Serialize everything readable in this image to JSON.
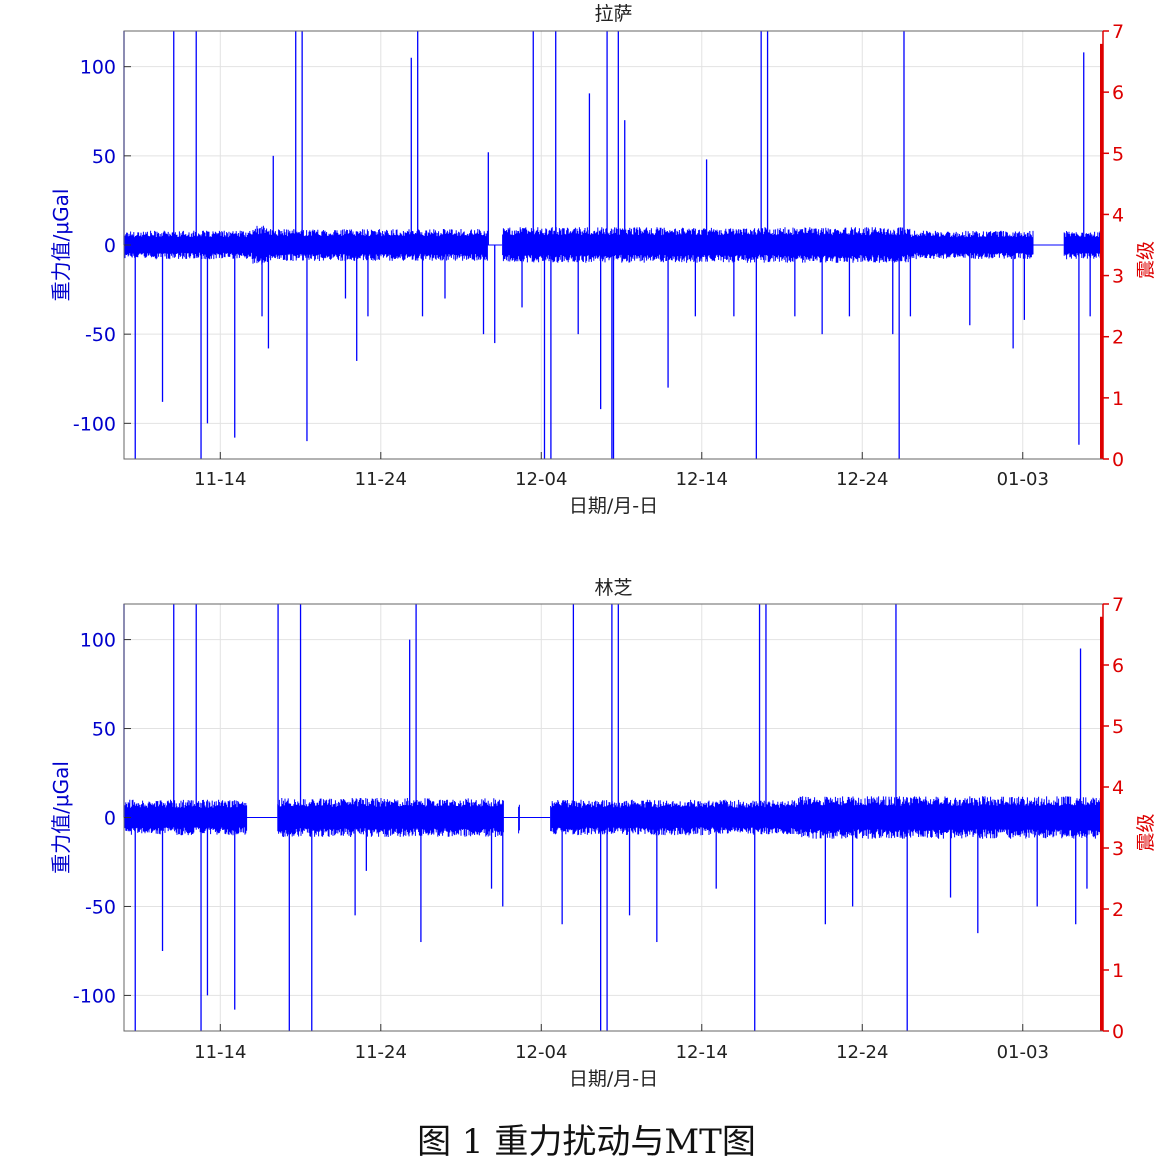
{
  "figure": {
    "caption": "图 1 重力扰动与MT图"
  },
  "chart_data": [
    {
      "type": "line",
      "title": "拉萨",
      "xlabel": "日期/月-日",
      "ylabel_left": "重力值/μGal",
      "ylabel_right": "震级",
      "x_range": [
        "11-08",
        "01-08"
      ],
      "x_ticks": [
        "11-14",
        "11-24",
        "12-04",
        "12-14",
        "12-24",
        "01-03"
      ],
      "ylim_left": [
        -120,
        120
      ],
      "yticks_left": [
        100,
        50,
        0,
        -50,
        -100
      ],
      "ylim_right": [
        0,
        7
      ],
      "yticks_right": [
        7,
        6,
        5,
        4,
        3,
        2,
        1,
        0
      ],
      "grid": true,
      "series": [
        {
          "name": "重力值",
          "axis": "left",
          "color": "#0000ff",
          "noise_amplitude": [
            {
              "from": "11-08",
              "to": "11-16",
              "amp": 8
            },
            {
              "from": "11-16",
              "to": "11-17",
              "amp": 11
            },
            {
              "from": "11-17",
              "to": "12-01",
              "amp": 9
            },
            {
              "from": "12-01",
              "to": "12-27",
              "amp": 10
            },
            {
              "from": "12-27",
              "to": "01-08",
              "amp": 8
            }
          ],
          "gaps": [
            [
              "12-01",
              "12-01"
            ],
            [
              "01-04",
              "01-05"
            ]
          ],
          "spikes": [
            {
              "d": "11-08",
              "v": 120
            },
            {
              "d": "11-08",
              "v": -120
            },
            {
              "d": "11-10",
              "v": -88
            },
            {
              "d": "11-11",
              "v": 120
            },
            {
              "d": "11-12",
              "v": -120
            },
            {
              "d": "11-12",
              "v": 120
            },
            {
              "d": "11-13",
              "v": -100
            },
            {
              "d": "11-14",
              "v": -108
            },
            {
              "d": "11-16",
              "v": -40
            },
            {
              "d": "11-17",
              "v": 50
            },
            {
              "d": "11-17",
              "v": -58
            },
            {
              "d": "11-18",
              "v": 120
            },
            {
              "d": "11-19",
              "v": -110
            },
            {
              "d": "11-19",
              "v": 120
            },
            {
              "d": "11-21",
              "v": -30
            },
            {
              "d": "11-22",
              "v": -65
            },
            {
              "d": "11-23",
              "v": -40
            },
            {
              "d": "11-25",
              "v": 105
            },
            {
              "d": "11-26",
              "v": -40
            },
            {
              "d": "11-26",
              "v": 120
            },
            {
              "d": "11-28",
              "v": -30
            },
            {
              "d": "11-30",
              "v": 52
            },
            {
              "d": "11-30",
              "v": -50
            },
            {
              "d": "12-01",
              "v": -55
            },
            {
              "d": "12-02",
              "v": -35
            },
            {
              "d": "12-03",
              "v": 120
            },
            {
              "d": "12-04",
              "v": -120
            },
            {
              "d": "12-04",
              "v": 120
            },
            {
              "d": "12-04",
              "v": -120
            },
            {
              "d": "12-06",
              "v": -50
            },
            {
              "d": "12-07",
              "v": 85
            },
            {
              "d": "12-07",
              "v": -92
            },
            {
              "d": "12-08",
              "v": -120
            },
            {
              "d": "12-08",
              "v": 120
            },
            {
              "d": "12-08",
              "v": 120
            },
            {
              "d": "12-08",
              "v": -120
            },
            {
              "d": "12-09",
              "v": 70
            },
            {
              "d": "12-11",
              "v": -80
            },
            {
              "d": "12-13",
              "v": -40
            },
            {
              "d": "12-14",
              "v": 48
            },
            {
              "d": "12-16",
              "v": -40
            },
            {
              "d": "12-17",
              "v": 120
            },
            {
              "d": "12-17",
              "v": -120
            },
            {
              "d": "12-18",
              "v": 120
            },
            {
              "d": "12-19",
              "v": -40
            },
            {
              "d": "12-21",
              "v": -50
            },
            {
              "d": "12-23",
              "v": -40
            },
            {
              "d": "12-25",
              "v": -50
            },
            {
              "d": "12-26",
              "v": 120
            },
            {
              "d": "12-26",
              "v": -120
            },
            {
              "d": "12-27",
              "v": -40
            },
            {
              "d": "12-30",
              "v": -45
            },
            {
              "d": "01-02",
              "v": -58
            },
            {
              "d": "01-03",
              "v": -42
            },
            {
              "d": "01-06",
              "v": 108
            },
            {
              "d": "01-06",
              "v": -112
            },
            {
              "d": "01-07",
              "v": -40
            }
          ]
        },
        {
          "name": "震级",
          "axis": "right",
          "color": "#dd0000",
          "events": [
            {
              "d": "01-08",
              "m": 7
            }
          ]
        }
      ]
    },
    {
      "type": "line",
      "title": "林芝",
      "xlabel": "日期/月-日",
      "ylabel_left": "重力值/μGal",
      "ylabel_right": "震级",
      "x_range": [
        "11-08",
        "01-08"
      ],
      "x_ticks": [
        "11-14",
        "11-24",
        "12-04",
        "12-14",
        "12-24",
        "01-03"
      ],
      "ylim_left": [
        -120,
        120
      ],
      "yticks_left": [
        100,
        50,
        0,
        -50,
        -100
      ],
      "ylim_right": [
        0,
        7
      ],
      "yticks_right": [
        7,
        6,
        5,
        4,
        3,
        2,
        1,
        0
      ],
      "grid": true,
      "series": [
        {
          "name": "重力值",
          "axis": "left",
          "color": "#0000ff",
          "noise_amplitude": [
            {
              "from": "11-08",
              "to": "11-16",
              "amp": 10
            },
            {
              "from": "11-17",
              "to": "12-01",
              "amp": 11
            },
            {
              "from": "12-02",
              "to": "12-03",
              "amp": 9
            },
            {
              "from": "12-04",
              "to": "12-20",
              "amp": 10
            },
            {
              "from": "12-20",
              "to": "01-08",
              "amp": 12
            }
          ],
          "gaps": [
            [
              "11-16",
              "11-17"
            ],
            [
              "12-02",
              "12-02"
            ],
            [
              "12-03",
              "12-04"
            ]
          ],
          "spikes": [
            {
              "d": "11-08",
              "v": 120
            },
            {
              "d": "11-08",
              "v": -120
            },
            {
              "d": "11-10",
              "v": -75
            },
            {
              "d": "11-11",
              "v": 120
            },
            {
              "d": "11-12",
              "v": -120
            },
            {
              "d": "11-12",
              "v": 120
            },
            {
              "d": "11-13",
              "v": -100
            },
            {
              "d": "11-14",
              "v": -108
            },
            {
              "d": "11-17",
              "v": 120
            },
            {
              "d": "11-18",
              "v": -120
            },
            {
              "d": "11-19",
              "v": 120
            },
            {
              "d": "11-19",
              "v": -120
            },
            {
              "d": "11-22",
              "v": -55
            },
            {
              "d": "11-23",
              "v": -30
            },
            {
              "d": "11-25",
              "v": 100
            },
            {
              "d": "11-26",
              "v": -70
            },
            {
              "d": "11-26",
              "v": 120
            },
            {
              "d": "11-30",
              "v": -40
            },
            {
              "d": "12-01",
              "v": -50
            },
            {
              "d": "12-05",
              "v": -60
            },
            {
              "d": "12-06",
              "v": 120
            },
            {
              "d": "12-07",
              "v": -120
            },
            {
              "d": "12-08",
              "v": 120
            },
            {
              "d": "12-08",
              "v": -120
            },
            {
              "d": "12-08",
              "v": 120
            },
            {
              "d": "12-09",
              "v": -55
            },
            {
              "d": "12-11",
              "v": -70
            },
            {
              "d": "12-14",
              "v": -40
            },
            {
              "d": "12-17",
              "v": 120
            },
            {
              "d": "12-17",
              "v": -120
            },
            {
              "d": "12-18",
              "v": 120
            },
            {
              "d": "12-21",
              "v": -60
            },
            {
              "d": "12-23",
              "v": -50
            },
            {
              "d": "12-26",
              "v": 120
            },
            {
              "d": "12-26",
              "v": -120
            },
            {
              "d": "12-29",
              "v": -45
            },
            {
              "d": "12-31",
              "v": -65
            },
            {
              "d": "01-03",
              "v": -50
            },
            {
              "d": "01-06",
              "v": 95
            },
            {
              "d": "01-06",
              "v": -60
            },
            {
              "d": "01-07",
              "v": -40
            }
          ]
        },
        {
          "name": "震级",
          "axis": "right",
          "color": "#dd0000",
          "events": [
            {
              "d": "01-08",
              "m": 7
            }
          ]
        }
      ]
    }
  ]
}
